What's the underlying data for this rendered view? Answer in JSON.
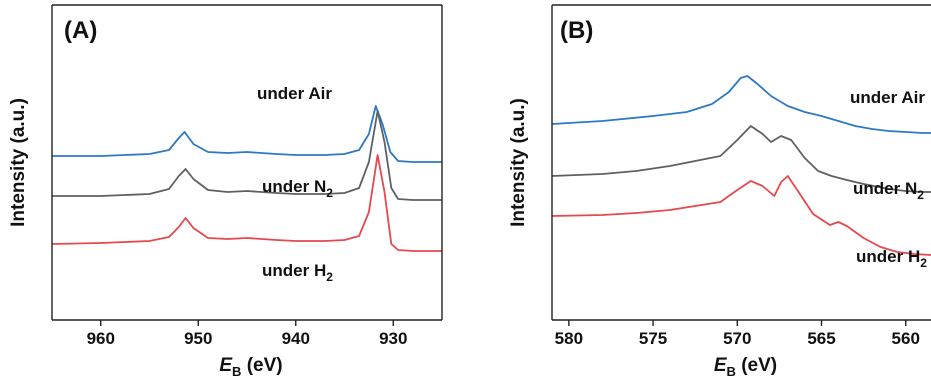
{
  "chart_data": [
    {
      "type": "line",
      "panel_label": "(A)",
      "xlabel": {
        "main": "E",
        "sub": "B",
        "unit": " (eV)"
      },
      "ylabel": "Intensity (a.u.)",
      "xlim": [
        965,
        925
      ],
      "x_reversed": true,
      "xticks": [
        960,
        950,
        940,
        930
      ],
      "grid": false,
      "y_ticks": false,
      "series": [
        {
          "name": "under Air",
          "label_main": "under Air",
          "label_sub": "",
          "color": "#2f78c4",
          "x": [
            965,
            960,
            955,
            953,
            952,
            951.4,
            950.5,
            949,
            947,
            945,
            942,
            940,
            937,
            935,
            933.5,
            932.5,
            931.8,
            931.1,
            930.3,
            929.5,
            928,
            926,
            925
          ],
          "y": [
            0.4,
            0.4,
            0.42,
            0.46,
            0.58,
            0.64,
            0.52,
            0.44,
            0.43,
            0.44,
            0.42,
            0.41,
            0.41,
            0.42,
            0.46,
            0.62,
            0.9,
            0.72,
            0.44,
            0.35,
            0.34,
            0.34,
            0.34
          ]
        },
        {
          "name": "under N2",
          "label_main": "under N",
          "label_sub": "2",
          "color": "#5c6165",
          "x": [
            965,
            960,
            955,
            953,
            952,
            951.3,
            950.5,
            949,
            947,
            945,
            942,
            940,
            937,
            935,
            933.5,
            932.5,
            931.6,
            930.9,
            930.2,
            929.5,
            928,
            926,
            925
          ],
          "y": [
            0.0,
            0.0,
            0.02,
            0.07,
            0.2,
            0.27,
            0.17,
            0.06,
            0.04,
            0.05,
            0.03,
            0.02,
            0.02,
            0.03,
            0.08,
            0.34,
            0.85,
            0.54,
            0.08,
            -0.03,
            -0.04,
            -0.04,
            -0.04
          ]
        },
        {
          "name": "under H2",
          "label_main": "under H",
          "label_sub": "2",
          "color": "#e5484d",
          "x": [
            965,
            960,
            955,
            953,
            952,
            951.3,
            950.5,
            949,
            947,
            945,
            942,
            940,
            937,
            935,
            933.5,
            932.5,
            931.6,
            930.9,
            930.2,
            929.5,
            928,
            926,
            925
          ],
          "y": [
            -0.48,
            -0.47,
            -0.45,
            -0.41,
            -0.31,
            -0.22,
            -0.32,
            -0.42,
            -0.43,
            -0.42,
            -0.44,
            -0.45,
            -0.45,
            -0.44,
            -0.4,
            -0.16,
            0.41,
            0.04,
            -0.48,
            -0.54,
            -0.55,
            -0.55,
            -0.55
          ]
        }
      ]
    },
    {
      "type": "line",
      "panel_label": "(B)",
      "xlabel": {
        "main": "E",
        "sub": "B",
        "unit": " (eV)"
      },
      "ylabel": "Intensity (a.u.)",
      "xlim": [
        581,
        558.5
      ],
      "x_reversed": true,
      "xticks": [
        580,
        575,
        570,
        565,
        560
      ],
      "grid": false,
      "y_ticks": false,
      "series": [
        {
          "name": "under Air",
          "label_main": "under Air",
          "label_sub": "",
          "color": "#2f78c4",
          "x": [
            581,
            578,
            575,
            573,
            571.5,
            570.5,
            569.8,
            569.4,
            568.8,
            568,
            567,
            566,
            565,
            564,
            563,
            562,
            561,
            560,
            559,
            558.5
          ],
          "y": [
            0.52,
            0.55,
            0.6,
            0.64,
            0.72,
            0.84,
            0.98,
            1.0,
            0.92,
            0.8,
            0.7,
            0.64,
            0.6,
            0.55,
            0.5,
            0.47,
            0.45,
            0.44,
            0.43,
            0.43
          ]
        },
        {
          "name": "under N2",
          "label_main": "under N",
          "label_sub": "2",
          "color": "#5c6165",
          "x": [
            581,
            578,
            576,
            574,
            572.5,
            571,
            570,
            569.2,
            568.5,
            568,
            567.4,
            566.8,
            566,
            565.2,
            564.4,
            563.5,
            562.5,
            561,
            560,
            559,
            558.5
          ],
          "y": [
            0.0,
            0.02,
            0.05,
            0.1,
            0.15,
            0.2,
            0.36,
            0.5,
            0.42,
            0.34,
            0.4,
            0.36,
            0.18,
            0.05,
            0.0,
            -0.04,
            -0.08,
            -0.13,
            -0.15,
            -0.16,
            -0.16
          ]
        },
        {
          "name": "under H2",
          "label_main": "under H",
          "label_sub": "2",
          "color": "#e5484d",
          "x": [
            581,
            578,
            576,
            574,
            572.5,
            571,
            570,
            569.2,
            568.5,
            567.8,
            567.4,
            567,
            566.4,
            565.5,
            564.5,
            564,
            563.5,
            562.5,
            561.5,
            560.5,
            559.5,
            558.5
          ],
          "y": [
            -0.4,
            -0.39,
            -0.37,
            -0.34,
            -0.3,
            -0.26,
            -0.14,
            -0.05,
            -0.1,
            -0.2,
            -0.06,
            0.0,
            -0.15,
            -0.38,
            -0.49,
            -0.46,
            -0.5,
            -0.62,
            -0.71,
            -0.76,
            -0.78,
            -0.79
          ]
        }
      ]
    }
  ]
}
